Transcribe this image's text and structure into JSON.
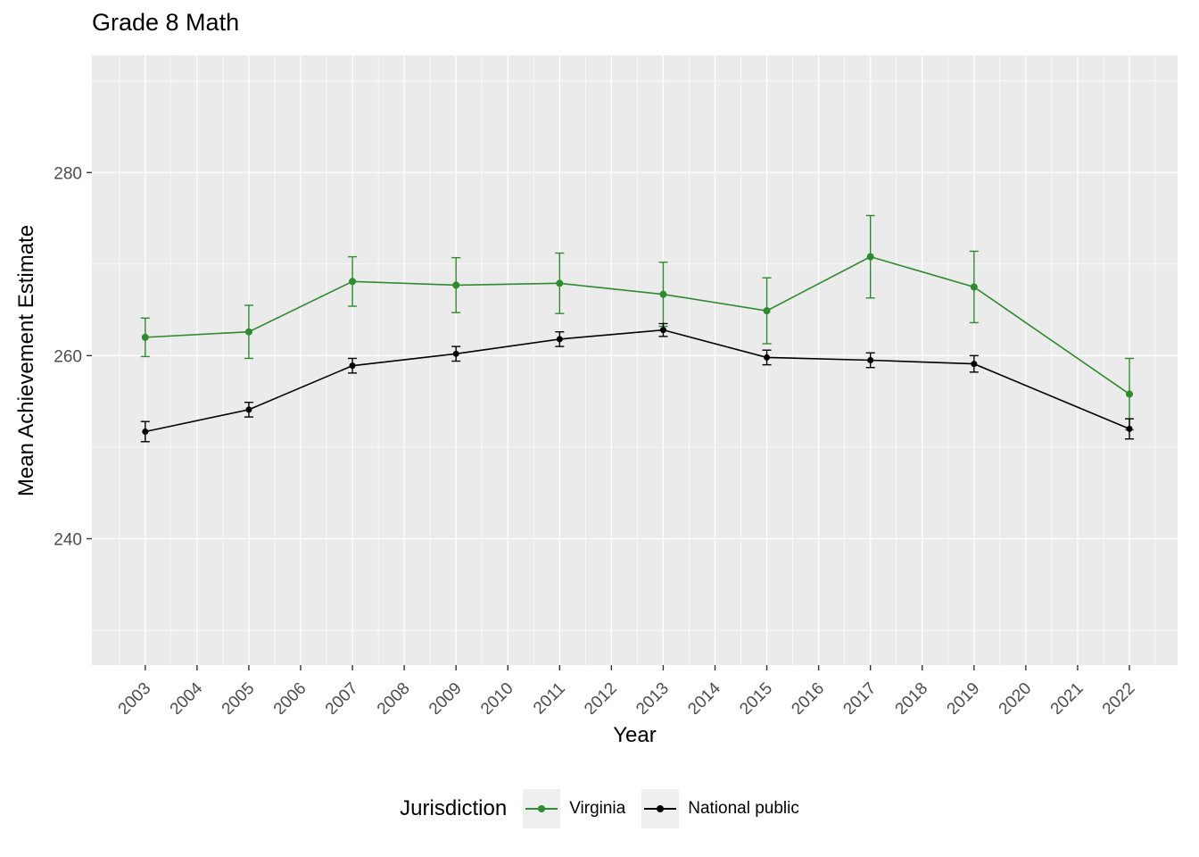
{
  "title": "Grade 8 Math",
  "xlabel": "Year",
  "ylabel": "Mean Achievement Estimate",
  "legend": {
    "title": "Jurisdiction",
    "entries": [
      {
        "label": "Virginia",
        "color": "#2e8b2e"
      },
      {
        "label": "National public",
        "color": "#000000"
      }
    ]
  },
  "chart_data": {
    "type": "line",
    "title": "Grade 8 Math",
    "xlabel": "Year",
    "ylabel": "Mean Achievement Estimate",
    "x_ticks": [
      2003,
      2004,
      2005,
      2006,
      2007,
      2008,
      2009,
      2010,
      2011,
      2012,
      2013,
      2014,
      2015,
      2016,
      2017,
      2018,
      2019,
      2020,
      2021,
      2022
    ],
    "y_ticks": [
      240,
      260,
      280
    ],
    "y_minor": [
      230,
      250,
      270,
      290
    ],
    "xlim": [
      2001.97,
      2022.93
    ],
    "ylim": [
      226.2,
      292.8
    ],
    "x": [
      2003,
      2005,
      2007,
      2009,
      2011,
      2013,
      2015,
      2017,
      2019,
      2022
    ],
    "series": [
      {
        "name": "Virginia",
        "color": "#2e8b2e",
        "values": [
          262.0,
          262.6,
          268.1,
          267.7,
          267.9,
          266.7,
          264.9,
          270.8,
          267.5,
          255.8
        ],
        "errors": [
          2.1,
          2.9,
          2.7,
          3.0,
          3.3,
          3.5,
          3.6,
          4.5,
          3.9,
          3.9
        ]
      },
      {
        "name": "National public",
        "color": "#000000",
        "values": [
          251.7,
          254.1,
          258.9,
          260.2,
          261.8,
          262.8,
          259.8,
          259.5,
          259.1,
          252.0
        ],
        "errors": [
          1.1,
          0.8,
          0.8,
          0.8,
          0.8,
          0.7,
          0.8,
          0.8,
          0.9,
          1.1
        ]
      }
    ],
    "panel_fill": "#EBEBEB",
    "grid_color": "#FFFFFF",
    "tick_text_color": "#4D4D4D",
    "legend_position": "bottom",
    "grid": true
  }
}
